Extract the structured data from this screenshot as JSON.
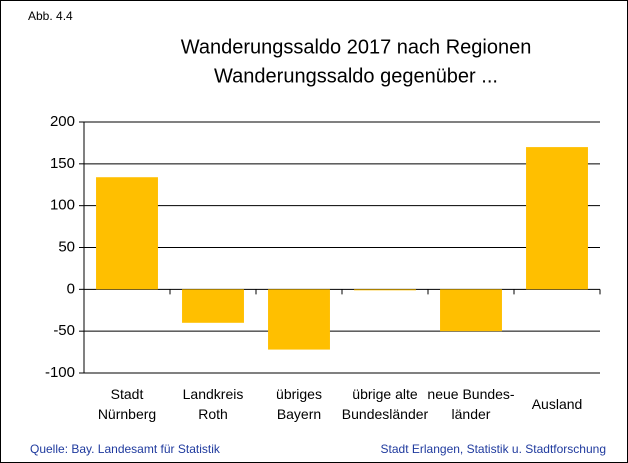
{
  "chart_data": {
    "type": "bar",
    "label": "Abb. 4.4",
    "title": "Wanderungssaldo 2017 nach Regionen",
    "subtitle": "Wanderungssaldo gegenüber ...",
    "categories": [
      "Stadt\nNürnberg",
      "Landkreis\nRoth",
      "übriges\nBayern",
      "übrige alte\nBundesländer",
      "neue Bundes-\nländer",
      "Ausland"
    ],
    "values": [
      134,
      -40,
      -72,
      -1,
      -50,
      170
    ],
    "color": "#ffbf00",
    "ylim": [
      -100,
      200
    ],
    "yticks": [
      -100,
      -50,
      0,
      50,
      100,
      150,
      200
    ],
    "grid": true,
    "source": "Quelle: Bay. Landesamt für Statistik",
    "credit": "Stadt Erlangen, Statistik u. Stadtforschung"
  }
}
